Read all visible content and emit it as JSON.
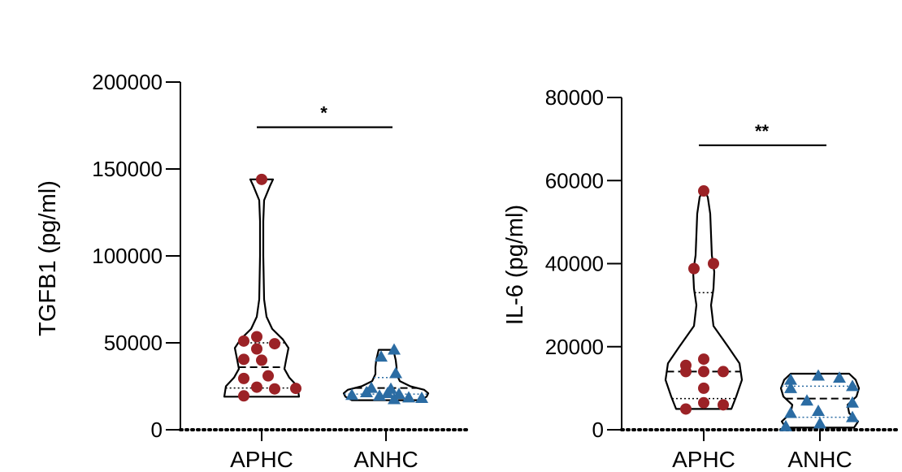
{
  "colors": {
    "aphc_marker": "#9b2226",
    "anhc_marker": "#2b6ca3",
    "violin_stroke": "#000000",
    "anhc_quartile_line": "#2b6ca3"
  },
  "chart_data": [
    {
      "type": "violin",
      "ylabel": "TGFB1 (pg/ml)",
      "ylim": [
        0,
        200000
      ],
      "yticks": [
        "0",
        "50000",
        "100000",
        "150000",
        "200000"
      ],
      "yticks_values": [
        0,
        50000,
        100000,
        150000,
        200000
      ],
      "categories": [
        "APHC",
        "ANHC"
      ],
      "series": [
        {
          "category": "APHC",
          "marker": "circle",
          "min": 19000,
          "max": 144000,
          "median": 36000,
          "q1": 24000,
          "q3": 50000,
          "points": [
            {
              "x": -0.22,
              "y": 51000
            },
            {
              "x": -0.06,
              "y": 53500
            },
            {
              "x": 0.16,
              "y": 49500
            },
            {
              "x": -0.06,
              "y": 46500
            },
            {
              "x": 0.0,
              "y": 40000
            },
            {
              "x": -0.22,
              "y": 40500
            },
            {
              "x": -0.22,
              "y": 29500
            },
            {
              "x": 0.08,
              "y": 31000
            },
            {
              "x": -0.06,
              "y": 24500
            },
            {
              "x": 0.16,
              "y": 23500
            },
            {
              "x": 0.42,
              "y": 23800
            },
            {
              "x": -0.22,
              "y": 19500
            },
            {
              "x": 0.0,
              "y": 144000
            }
          ],
          "density": [
            [
              19000,
              0.46
            ],
            [
              25000,
              0.44
            ],
            [
              30000,
              0.34
            ],
            [
              35000,
              0.28
            ],
            [
              40000,
              0.3
            ],
            [
              47000,
              0.33
            ],
            [
              52000,
              0.26
            ],
            [
              58000,
              0.13
            ],
            [
              65000,
              0.06
            ],
            [
              75000,
              0.03
            ],
            [
              100000,
              0.02
            ],
            [
              120000,
              0.02
            ],
            [
              132000,
              0.03
            ],
            [
              140000,
              0.1
            ],
            [
              144000,
              0.14
            ]
          ]
        },
        {
          "category": "ANHC",
          "marker": "triangle",
          "min": 17000,
          "max": 46000,
          "median": 24000,
          "q1": 20500,
          "q3": 30000,
          "points": [
            {
              "x": 0.1,
              "y": 46000
            },
            {
              "x": -0.06,
              "y": 42000
            },
            {
              "x": 0.12,
              "y": 32500
            },
            {
              "x": -0.18,
              "y": 24000
            },
            {
              "x": 0.06,
              "y": 23500
            },
            {
              "x": -0.42,
              "y": 20000
            },
            {
              "x": -0.24,
              "y": 21500
            },
            {
              "x": -0.08,
              "y": 19500
            },
            {
              "x": 0.02,
              "y": 21000
            },
            {
              "x": 0.16,
              "y": 20500
            },
            {
              "x": 0.28,
              "y": 18500
            },
            {
              "x": 0.44,
              "y": 18200
            },
            {
              "x": 0.1,
              "y": 17500
            }
          ],
          "density": [
            [
              17000,
              0.42
            ],
            [
              19000,
              0.5
            ],
            [
              21000,
              0.52
            ],
            [
              23000,
              0.47
            ],
            [
              25000,
              0.3
            ],
            [
              28000,
              0.17
            ],
            [
              32000,
              0.13
            ],
            [
              36000,
              0.13
            ],
            [
              40000,
              0.12
            ],
            [
              44000,
              0.1
            ],
            [
              46000,
              0.09
            ]
          ]
        }
      ],
      "significance": {
        "label": "*",
        "y": 174000
      }
    },
    {
      "type": "violin",
      "ylabel": "IL-6 (pg/ml)",
      "ylim": [
        0,
        80000
      ],
      "yticks": [
        "0",
        "20000",
        "40000",
        "60000",
        "80000"
      ],
      "yticks_values": [
        0,
        20000,
        40000,
        60000,
        80000
      ],
      "categories": [
        "APHC",
        "ANHC"
      ],
      "series": [
        {
          "category": "APHC",
          "marker": "circle",
          "min": 5000,
          "max": 58000,
          "median": 14000,
          "q1": 7500,
          "q3": 33000,
          "points": [
            {
              "x": 0.0,
              "y": 57500
            },
            {
              "x": -0.12,
              "y": 38800
            },
            {
              "x": 0.12,
              "y": 40000
            },
            {
              "x": -0.22,
              "y": 15500
            },
            {
              "x": 0.0,
              "y": 17000
            },
            {
              "x": -0.22,
              "y": 14000
            },
            {
              "x": 0.0,
              "y": 14000
            },
            {
              "x": 0.24,
              "y": 14000
            },
            {
              "x": 0.0,
              "y": 10000
            },
            {
              "x": 0.0,
              "y": 6500
            },
            {
              "x": 0.24,
              "y": 6000
            },
            {
              "x": -0.22,
              "y": 5000
            }
          ],
          "density": [
            [
              5000,
              0.34
            ],
            [
              8000,
              0.4
            ],
            [
              12000,
              0.47
            ],
            [
              16000,
              0.44
            ],
            [
              20000,
              0.3
            ],
            [
              25000,
              0.12
            ],
            [
              30000,
              0.09
            ],
            [
              34000,
              0.12
            ],
            [
              38000,
              0.13
            ],
            [
              42000,
              0.1
            ],
            [
              47000,
              0.09
            ],
            [
              52000,
              0.08
            ],
            [
              56000,
              0.05
            ],
            [
              58000,
              0.0
            ]
          ]
        },
        {
          "category": "ANHC",
          "marker": "triangle",
          "min": 500,
          "max": 13500,
          "median": 7500,
          "q1": 3000,
          "q3": 10500,
          "points": [
            {
              "x": -0.36,
              "y": 12000
            },
            {
              "x": -0.02,
              "y": 13000
            },
            {
              "x": 0.24,
              "y": 12500
            },
            {
              "x": -0.36,
              "y": 10000
            },
            {
              "x": 0.4,
              "y": 10500
            },
            {
              "x": -0.16,
              "y": 7000
            },
            {
              "x": 0.4,
              "y": 6500
            },
            {
              "x": -0.36,
              "y": 4000
            },
            {
              "x": -0.02,
              "y": 4500
            },
            {
              "x": 0.4,
              "y": 3000
            },
            {
              "x": -0.42,
              "y": 800
            },
            {
              "x": 0.0,
              "y": 1500
            }
          ],
          "density": [
            [
              500,
              0.42
            ],
            [
              2000,
              0.47
            ],
            [
              4000,
              0.36
            ],
            [
              6000,
              0.34
            ],
            [
              8000,
              0.45
            ],
            [
              10000,
              0.48
            ],
            [
              12000,
              0.44
            ],
            [
              13500,
              0.36
            ]
          ]
        }
      ],
      "significance": {
        "label": "**",
        "y": 68500
      }
    }
  ]
}
